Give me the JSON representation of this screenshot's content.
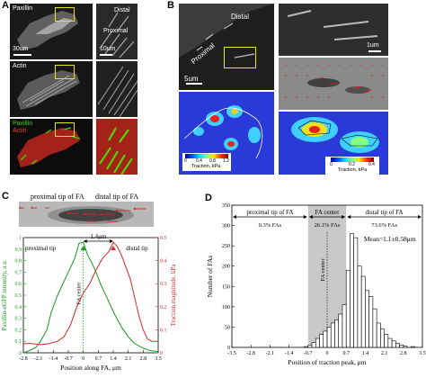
{
  "panels": {
    "a": {
      "letter": "A",
      "rows": [
        {
          "name": "paxillin",
          "label": "Paxillin",
          "scale": "30um"
        },
        {
          "name": "actin",
          "label": "Actin"
        },
        {
          "name": "merge",
          "label_top": "Paxillin",
          "label_bottom": "Actin"
        }
      ],
      "zoom_labels": {
        "distal": "Distal",
        "proximal": "Proximal",
        "scale": "10um"
      },
      "colors": {
        "paxillin": "#39d400",
        "actin": "#ff3b2a",
        "box": "#e5e51a"
      }
    },
    "b": {
      "letter": "B",
      "labels": {
        "distal": "Distal",
        "proximal": "Proximal",
        "scale_left": "5um",
        "scale_right": "1um"
      },
      "colorbar_left": {
        "ticks": [
          "0",
          "0.4",
          "0.8",
          "1.2"
        ],
        "label": "Traction, kPa"
      },
      "colorbar_right": {
        "ticks": [
          "0",
          "0.2",
          "0.4"
        ],
        "label": "Traction, kPa"
      }
    },
    "c": {
      "letter": "C",
      "top_labels": {
        "proximal": "proximal tip of FA",
        "distal": "distal tip of FA"
      },
      "annotations": {
        "proximal": "proximal tip",
        "distal": "distal tip",
        "distance": "1.4μm",
        "center": "FA center"
      },
      "xlabel": "Position along FA, μm",
      "ylabel_left": "Paxillin-eGFP intensity,  a.u.",
      "ylabel_right": "Traction magnitude, kPa",
      "colors": {
        "paxillin": "#1a9a1a",
        "traction": "#d42a2a"
      }
    },
    "d": {
      "letter": "D",
      "labels": {
        "proximal": "proximal tip of FA",
        "center": "FA center",
        "distal": "distal tip of FA",
        "pct_left": "0.3% FAs",
        "pct_center": "26.1% FAs",
        "pct_right": "73.6% FAs",
        "mean": "Mean=1.1±0.58μm",
        "vertical": "FA center"
      },
      "xlabel": "Position of traction peak, μm",
      "ylabel": "Number of FAs"
    }
  },
  "chart_data": [
    {
      "type": "line",
      "panel": "C",
      "xlabel": "Position along FA, μm",
      "ylabel": "Paxillin-eGFP intensity,  a.u.",
      "ylabel_right": "Traction magnitude, kPa",
      "xlim": [
        -2.8,
        3.5
      ],
      "ylim": [
        0,
        1
      ],
      "ylim_right": [
        0,
        0.5
      ],
      "x_ticks": [
        -2.8,
        -2.1,
        -1.4,
        -0.7,
        0,
        0.7,
        1.4,
        2.1,
        2.8,
        3.5
      ],
      "y_ticks": [
        0,
        0.1,
        0.2,
        0.3,
        0.4,
        0.5,
        0.6,
        0.7,
        0.8,
        0.9,
        1
      ],
      "y_ticks_right": [
        0,
        0.1,
        0.2,
        0.3,
        0.4,
        0.5
      ],
      "series": [
        {
          "axis": "left",
          "x": [
            -2.8,
            -2.5,
            -2.2,
            -2.0,
            -1.7,
            -1.5,
            -1.2,
            -0.9,
            -0.6,
            -0.4,
            -0.2,
            0.0,
            0.2,
            0.4,
            0.6,
            0.8,
            1.0,
            1.2,
            1.5,
            1.8,
            2.1,
            2.4,
            2.8,
            3.1,
            3.5
          ],
          "y": [
            0.0,
            0.02,
            0.05,
            0.1,
            0.2,
            0.35,
            0.5,
            0.62,
            0.74,
            0.82,
            0.95,
            0.96,
            0.85,
            0.78,
            0.7,
            0.6,
            0.52,
            0.44,
            0.32,
            0.22,
            0.14,
            0.08,
            0.04,
            0.02,
            0.01
          ]
        },
        {
          "axis": "right",
          "x": [
            -2.8,
            -2.4,
            -2.0,
            -1.6,
            -1.2,
            -0.9,
            -0.6,
            -0.3,
            0.0,
            0.3,
            0.6,
            0.9,
            1.2,
            1.4,
            1.6,
            1.8,
            2.0,
            2.2,
            2.4,
            2.6,
            2.8,
            3.0,
            3.2,
            3.5
          ],
          "y": [
            0.04,
            0.04,
            0.035,
            0.04,
            0.05,
            0.07,
            0.12,
            0.2,
            0.26,
            0.3,
            0.36,
            0.41,
            0.44,
            0.48,
            0.46,
            0.42,
            0.37,
            0.32,
            0.24,
            0.16,
            0.1,
            0.06,
            0.05,
            0.05
          ]
        }
      ]
    },
    {
      "type": "bar",
      "panel": "D",
      "xlabel": "Position of traction peak, μm",
      "ylabel": "Number of FAs",
      "xlim": [
        -3.5,
        3.5
      ],
      "ylim": [
        0,
        350
      ],
      "x_ticks": [
        -3.5,
        -2.8,
        -2.1,
        -1.4,
        -0.7,
        0,
        0.7,
        1.4,
        2.1,
        2.8,
        3.5
      ],
      "y_ticks": [
        0,
        50,
        100,
        150,
        200,
        250,
        300,
        350
      ],
      "bin_width": 0.14,
      "bin_starts": [
        -0.84,
        -0.7,
        -0.56,
        -0.42,
        -0.28,
        -0.14,
        0.0,
        0.14,
        0.28,
        0.42,
        0.56,
        0.7,
        0.84,
        0.98,
        1.12,
        1.26,
        1.4,
        1.54,
        1.68,
        1.82,
        1.96,
        2.1,
        2.24,
        2.38,
        2.52,
        2.66,
        2.8,
        3.08
      ],
      "values": [
        2,
        6,
        12,
        22,
        32,
        40,
        50,
        60,
        68,
        82,
        105,
        190,
        280,
        270,
        200,
        175,
        140,
        125,
        95,
        60,
        45,
        32,
        22,
        16,
        10,
        6,
        3,
        2
      ],
      "shaded_range": [
        -0.7,
        0.7
      ]
    }
  ]
}
